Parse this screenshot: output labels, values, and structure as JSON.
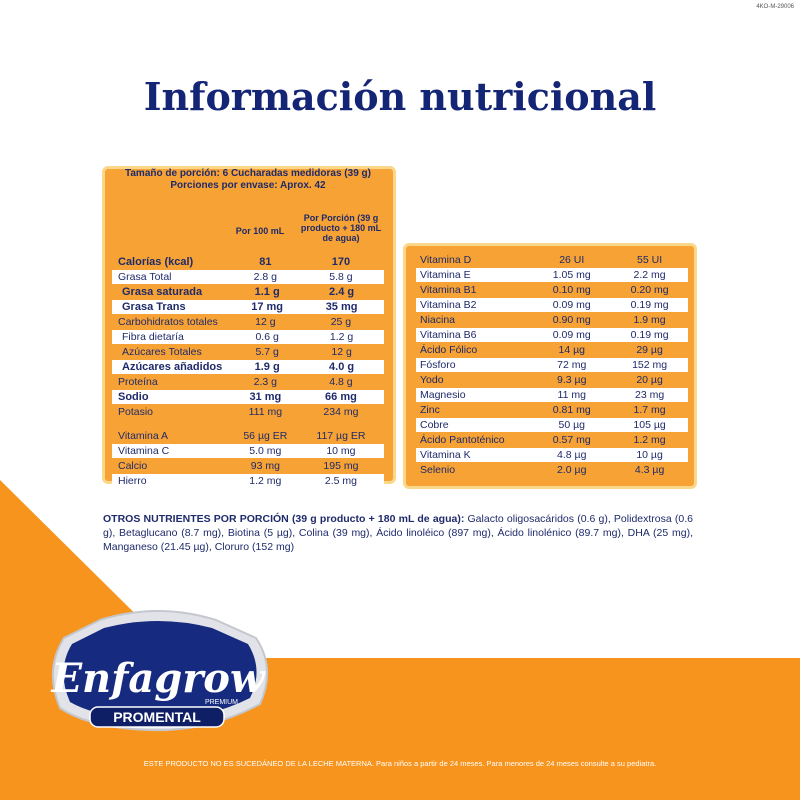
{
  "code": "4KO-M-29006",
  "title": "Información nutricional",
  "serving": {
    "line1": "Tamaño de porción: 6 Cucharadas medidoras (39 g)",
    "line2": "Porciones por envase: Aprox. 42"
  },
  "columns": {
    "per100": "Por 100 mL",
    "perPortion": "Por Porción (39 g producto + 180 mL de agua)"
  },
  "left_rows": [
    {
      "name": "Calorías (kcal)",
      "v1": "81",
      "v2": "170"
    },
    {
      "name": "Grasa Total",
      "v1": "2.8 g",
      "v2": "5.8 g"
    },
    {
      "name": "Grasa saturada",
      "v1": "1.1 g",
      "v2": "2.4 g"
    },
    {
      "name": "Grasa Trans",
      "v1": "17 mg",
      "v2": "35 mg"
    },
    {
      "name": "Carbohidratos totales",
      "v1": "12 g",
      "v2": "25 g"
    },
    {
      "name": "Fibra dietaría",
      "v1": "0.6 g",
      "v2": "1.2 g"
    },
    {
      "name": "Azúcares Totales",
      "v1": "5.7 g",
      "v2": "12 g"
    },
    {
      "name": "Azúcares añadidos",
      "v1": "1.9 g",
      "v2": "4.0 g"
    },
    {
      "name": "Proteína",
      "v1": "2.3 g",
      "v2": "4.8 g"
    },
    {
      "name": "Sodio",
      "v1": "31 mg",
      "v2": "66 mg"
    },
    {
      "name": "Potasio",
      "v1": "111 mg",
      "v2": "234 mg"
    },
    {
      "name": "Vitamina A",
      "v1": "56 µg ER",
      "v2": "117 µg ER"
    },
    {
      "name": "Vitamina C",
      "v1": "5.0 mg",
      "v2": "10 mg"
    },
    {
      "name": "Calcio",
      "v1": "93 mg",
      "v2": "195 mg"
    },
    {
      "name": "Hierro",
      "v1": "1.2 mg",
      "v2": "2.5 mg"
    }
  ],
  "right_rows": [
    {
      "name": "Vitamina D",
      "v1": "26 UI",
      "v2": "55 UI"
    },
    {
      "name": "Vitamina E",
      "v1": "1.05 mg",
      "v2": "2.2 mg"
    },
    {
      "name": "Vitamina B1",
      "v1": "0.10 mg",
      "v2": "0.20 mg"
    },
    {
      "name": "Vitamina B2",
      "v1": "0.09 mg",
      "v2": "0.19 mg"
    },
    {
      "name": "Niacina",
      "v1": "0.90 mg",
      "v2": "1.9 mg"
    },
    {
      "name": "Vitamina B6",
      "v1": "0.09 mg",
      "v2": "0.19 mg"
    },
    {
      "name": "Ácido Fólico",
      "v1": "14 µg",
      "v2": "29 µg"
    },
    {
      "name": "Fósforo",
      "v1": "72 mg",
      "v2": "152 mg"
    },
    {
      "name": "Yodo",
      "v1": "9.3 µg",
      "v2": "20 µg"
    },
    {
      "name": "Magnesio",
      "v1": "11 mg",
      "v2": "23 mg"
    },
    {
      "name": "Zinc",
      "v1": "0.81 mg",
      "v2": "1.7 mg"
    },
    {
      "name": "Cobre",
      "v1": "50 µg",
      "v2": "105 µg"
    },
    {
      "name": "Ácido Pantoténico",
      "v1": "0.57 mg",
      "v2": "1.2 mg"
    },
    {
      "name": "Vitamina K",
      "v1": "4.8 µg",
      "v2": "10 µg"
    },
    {
      "name": "Selenio",
      "v1": "2.0 µg",
      "v2": "4.3 µg"
    }
  ],
  "otros": {
    "label": "OTROS NUTRIENTES POR PORCIÓN (39 g producto + 180 mL de agua):",
    "text": " Galacto oligosacáridos (0.6 g), Polidextrosa (0.6 g), Betaglucano (8.7 mg), Biotina (5 µg), Colina (39 mg), Ácido linoléico (897 mg), Ácido linolénico (89.7 mg), DHA (25 mg), Manganeso (21.45 µg), Cloruro (152 mg)"
  },
  "logo": {
    "brand": "Enfagrow",
    "tier": "PREMIUM",
    "line": "PROMENTAL"
  },
  "footer": "ESTE PRODUCTO NO ES SUCEDÁNEO DE LA LECHE MATERNA. Para niños a partir de 24 meses. Para menores de 24 meses consulte a su pediatra.",
  "colors": {
    "orange": "#f7941e",
    "navy": "#152575",
    "cell": "#f7a234"
  }
}
